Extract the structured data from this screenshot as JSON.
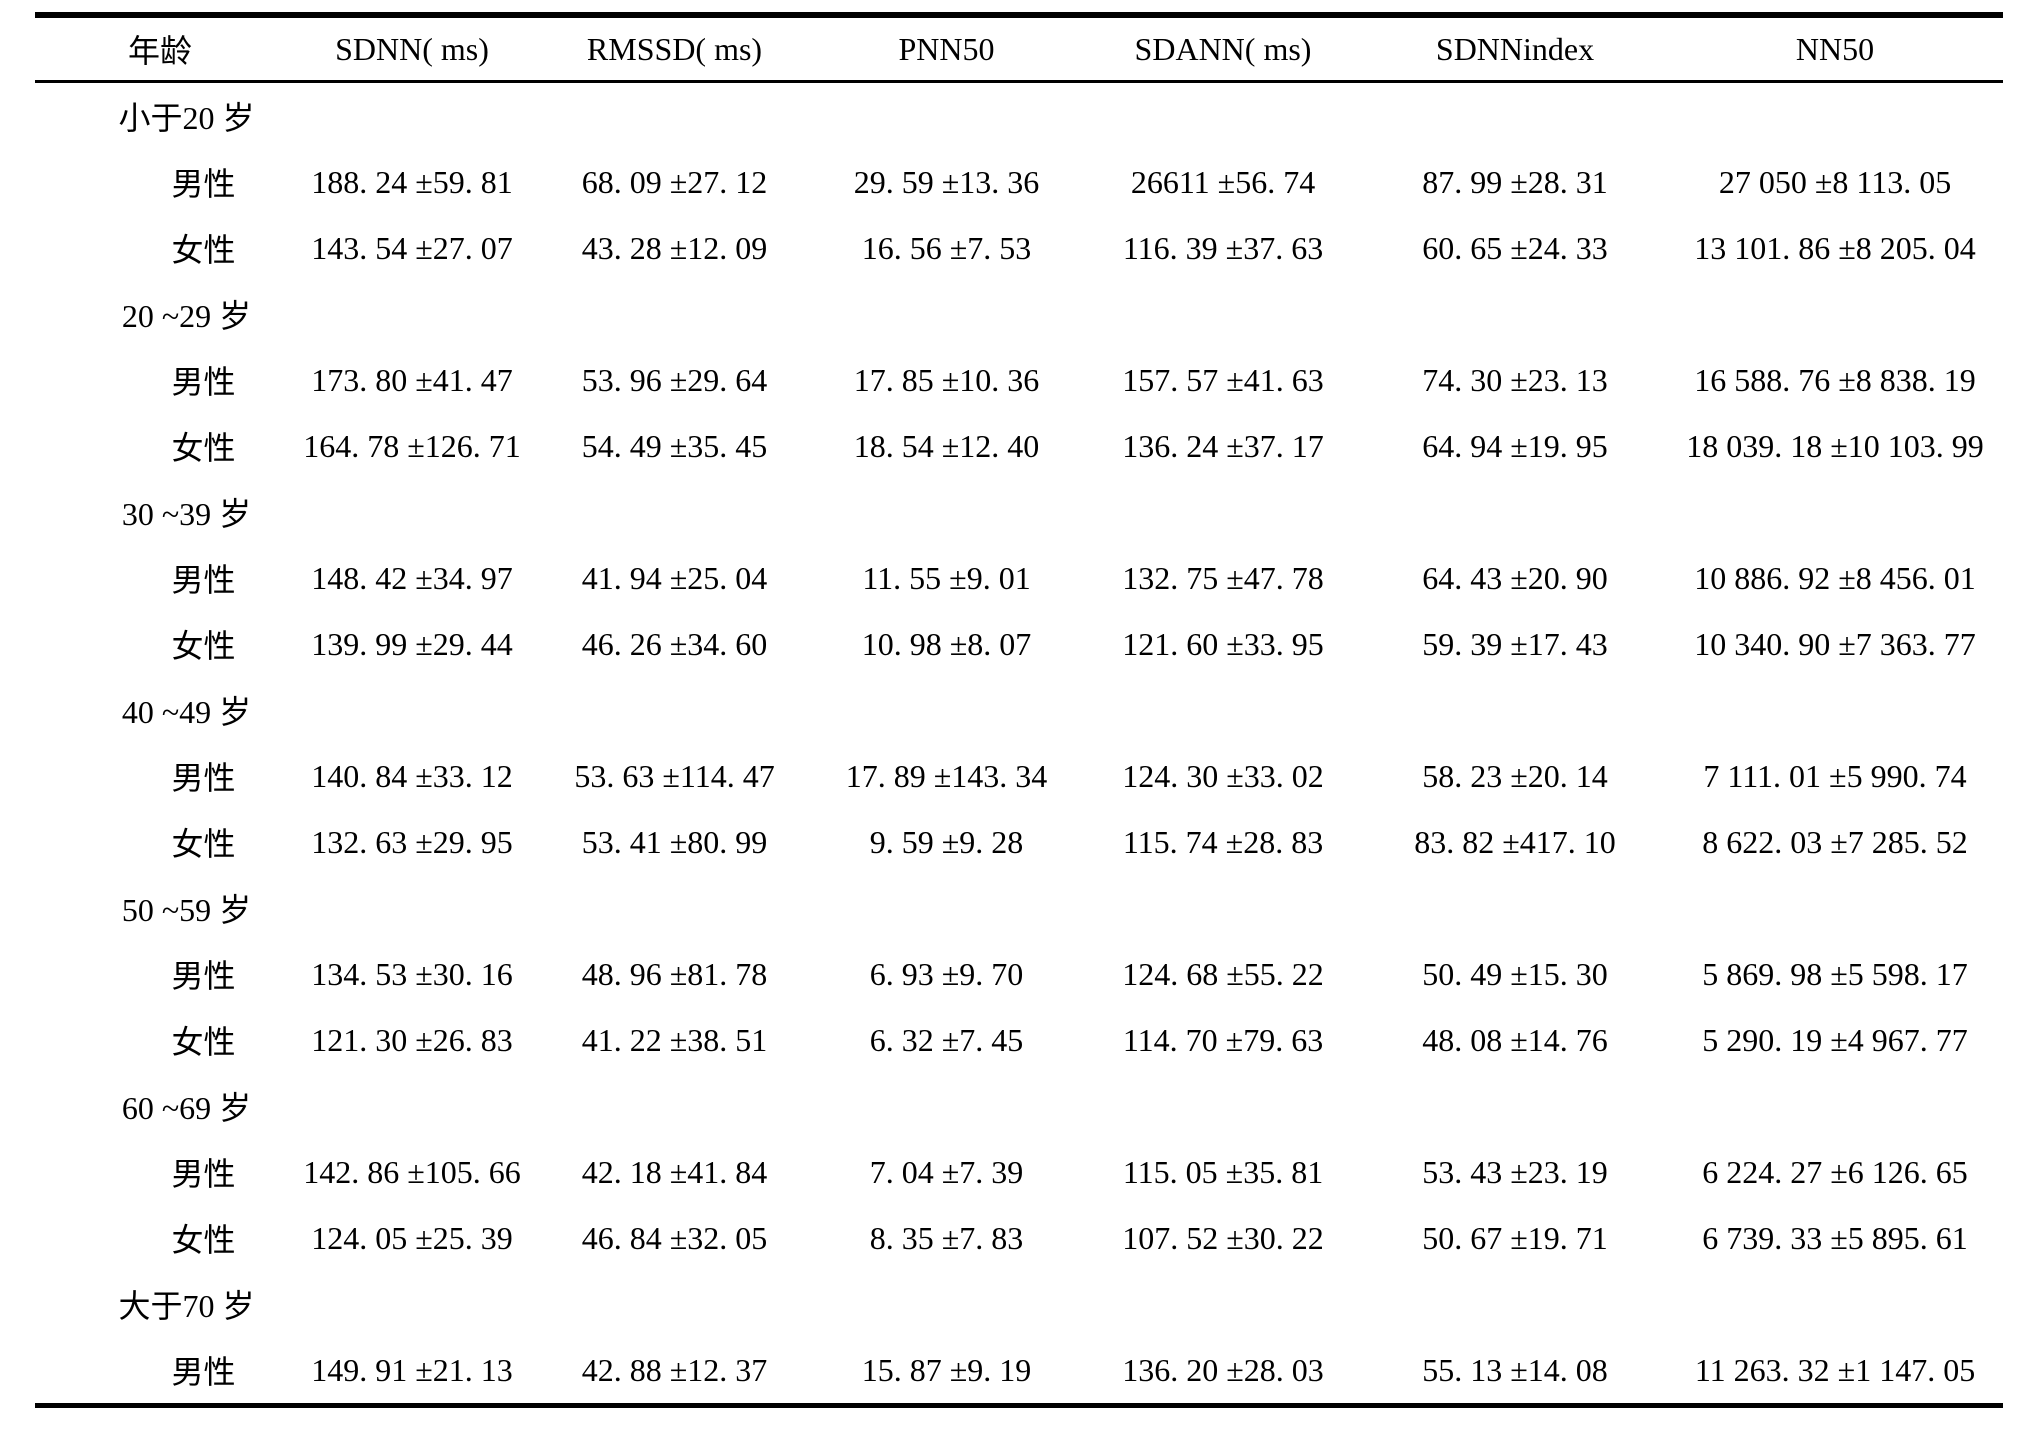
{
  "colors": {
    "text": "#000000",
    "background": "#ffffff",
    "rule": "#000000"
  },
  "table": {
    "columns": [
      "年龄",
      "SDNN( ms)",
      "RMSSD( ms)",
      "PNN50",
      "SDANN( ms)",
      "SDNNindex",
      "NN50"
    ],
    "rows": [
      {
        "type": "group",
        "label": "小于20 岁",
        "values": [
          "",
          "",
          "",
          "",
          "",
          ""
        ]
      },
      {
        "type": "data",
        "label": "男性",
        "values": [
          "188. 24 ±59. 81",
          "68. 09 ±27. 12",
          "29. 59 ±13. 36",
          "26611 ±56. 74",
          "87. 99 ±28. 31",
          "27 050 ±8 113. 05"
        ]
      },
      {
        "type": "data",
        "label": "女性",
        "values": [
          "143. 54 ±27. 07",
          "43. 28 ±12. 09",
          "16. 56 ±7. 53",
          "116. 39 ±37. 63",
          "60. 65 ±24. 33",
          "13 101. 86 ±8 205. 04"
        ]
      },
      {
        "type": "group",
        "label": "20 ~29 岁",
        "values": [
          "",
          "",
          "",
          "",
          "",
          ""
        ]
      },
      {
        "type": "data",
        "label": "男性",
        "values": [
          "173. 80 ±41. 47",
          "53. 96 ±29. 64",
          "17. 85 ±10. 36",
          "157. 57 ±41. 63",
          "74. 30 ±23. 13",
          "16 588. 76 ±8 838. 19"
        ]
      },
      {
        "type": "data",
        "label": "女性",
        "values": [
          "164. 78 ±126. 71",
          "54. 49 ±35. 45",
          "18. 54 ±12. 40",
          "136. 24 ±37. 17",
          "64. 94 ±19. 95",
          "18 039. 18 ±10 103. 99"
        ]
      },
      {
        "type": "group",
        "label": "30 ~39 岁",
        "values": [
          "",
          "",
          "",
          "",
          "",
          ""
        ]
      },
      {
        "type": "data",
        "label": "男性",
        "values": [
          "148. 42 ±34. 97",
          "41. 94 ±25. 04",
          "11. 55 ±9. 01",
          "132. 75 ±47. 78",
          "64. 43 ±20. 90",
          "10 886. 92 ±8 456. 01"
        ]
      },
      {
        "type": "data",
        "label": "女性",
        "values": [
          "139. 99 ±29. 44",
          "46. 26 ±34. 60",
          "10. 98 ±8. 07",
          "121. 60 ±33. 95",
          "59. 39 ±17. 43",
          "10 340. 90 ±7 363. 77"
        ]
      },
      {
        "type": "group",
        "label": "40 ~49 岁",
        "values": [
          "",
          "",
          "",
          "",
          "",
          ""
        ]
      },
      {
        "type": "data",
        "label": "男性",
        "values": [
          "140. 84 ±33. 12",
          "53. 63 ±114. 47",
          "17. 89 ±143. 34",
          "124. 30 ±33. 02",
          "58. 23 ±20. 14",
          "7 111. 01 ±5 990. 74"
        ]
      },
      {
        "type": "data",
        "label": "女性",
        "values": [
          "132. 63 ±29. 95",
          "53. 41 ±80. 99",
          "9. 59 ±9. 28",
          "115. 74 ±28. 83",
          "83. 82 ±417. 10",
          "8 622. 03 ±7 285. 52"
        ]
      },
      {
        "type": "group",
        "label": "50 ~59 岁",
        "values": [
          "",
          "",
          "",
          "",
          "",
          ""
        ]
      },
      {
        "type": "data",
        "label": "男性",
        "values": [
          "134. 53 ±30. 16",
          "48. 96 ±81. 78",
          "6. 93 ±9. 70",
          "124. 68 ±55. 22",
          "50. 49 ±15. 30",
          "5 869. 98 ±5 598. 17"
        ]
      },
      {
        "type": "data",
        "label": "女性",
        "values": [
          "121. 30 ±26. 83",
          "41. 22 ±38. 51",
          "6. 32 ±7. 45",
          "114. 70 ±79. 63",
          "48. 08 ±14. 76",
          "5 290. 19 ±4 967. 77"
        ]
      },
      {
        "type": "group",
        "label": "60 ~69 岁",
        "values": [
          "",
          "",
          "",
          "",
          "",
          ""
        ]
      },
      {
        "type": "data",
        "label": "男性",
        "values": [
          "142. 86 ±105. 66",
          "42. 18 ±41. 84",
          "7. 04 ±7. 39",
          "115. 05 ±35. 81",
          "53. 43 ±23. 19",
          "6 224. 27 ±6 126. 65"
        ]
      },
      {
        "type": "data",
        "label": "女性",
        "values": [
          "124. 05 ±25. 39",
          "46. 84 ±32. 05",
          "8. 35 ±7. 83",
          "107. 52 ±30. 22",
          "50. 67 ±19. 71",
          "6 739. 33 ±5 895. 61"
        ]
      },
      {
        "type": "group",
        "label": "大于70 岁",
        "values": [
          "",
          "",
          "",
          "",
          "",
          ""
        ]
      },
      {
        "type": "data",
        "label": "男性",
        "values": [
          "149. 91 ±21. 13",
          "42. 88 ±12. 37",
          "15. 87 ±9. 19",
          "136. 20 ±28. 03",
          "55. 13 ±14. 08",
          "11 263. 32 ±1 147. 05"
        ]
      }
    ]
  },
  "chart_data": {
    "type": "table",
    "title": "",
    "columns": [
      "年龄",
      "SDNN( ms)",
      "RMSSD( ms)",
      "PNN50",
      "SDANN( ms)",
      "SDNNindex",
      "NN50"
    ],
    "groups": [
      {
        "age": "小于20 岁",
        "male": {
          "SDNN": "188.24±59.81",
          "RMSSD": "68.09±27.12",
          "PNN50": "29.59±13.36",
          "SDANN": "26611±56.74",
          "SDNNindex": "87.99±28.31",
          "NN50": "27050±8113.05"
        },
        "female": {
          "SDNN": "143.54±27.07",
          "RMSSD": "43.28±12.09",
          "PNN50": "16.56±7.53",
          "SDANN": "116.39±37.63",
          "SDNNindex": "60.65±24.33",
          "NN50": "13101.86±8205.04"
        }
      },
      {
        "age": "20~29 岁",
        "male": {
          "SDNN": "173.80±41.47",
          "RMSSD": "53.96±29.64",
          "PNN50": "17.85±10.36",
          "SDANN": "157.57±41.63",
          "SDNNindex": "74.30±23.13",
          "NN50": "16588.76±8838.19"
        },
        "female": {
          "SDNN": "164.78±126.71",
          "RMSSD": "54.49±35.45",
          "PNN50": "18.54±12.40",
          "SDANN": "136.24±37.17",
          "SDNNindex": "64.94±19.95",
          "NN50": "18039.18±10103.99"
        }
      },
      {
        "age": "30~39 岁",
        "male": {
          "SDNN": "148.42±34.97",
          "RMSSD": "41.94±25.04",
          "PNN50": "11.55±9.01",
          "SDANN": "132.75±47.78",
          "SDNNindex": "64.43±20.90",
          "NN50": "10886.92±8456.01"
        },
        "female": {
          "SDNN": "139.99±29.44",
          "RMSSD": "46.26±34.60",
          "PNN50": "10.98±8.07",
          "SDANN": "121.60±33.95",
          "SDNNindex": "59.39±17.43",
          "NN50": "10340.90±7363.77"
        }
      },
      {
        "age": "40~49 岁",
        "male": {
          "SDNN": "140.84±33.12",
          "RMSSD": "53.63±114.47",
          "PNN50": "17.89±143.34",
          "SDANN": "124.30±33.02",
          "SDNNindex": "58.23±20.14",
          "NN50": "7111.01±5990.74"
        },
        "female": {
          "SDNN": "132.63±29.95",
          "RMSSD": "53.41±80.99",
          "PNN50": "9.59±9.28",
          "SDANN": "115.74±28.83",
          "SDNNindex": "83.82±417.10",
          "NN50": "8622.03±7285.52"
        }
      },
      {
        "age": "50~59 岁",
        "male": {
          "SDNN": "134.53±30.16",
          "RMSSD": "48.96±81.78",
          "PNN50": "6.93±9.70",
          "SDANN": "124.68±55.22",
          "SDNNindex": "50.49±15.30",
          "NN50": "5869.98±5598.17"
        },
        "female": {
          "SDNN": "121.30±26.83",
          "RMSSD": "41.22±38.51",
          "PNN50": "6.32±7.45",
          "SDANN": "114.70±79.63",
          "SDNNindex": "48.08±14.76",
          "NN50": "5290.19±4967.77"
        }
      },
      {
        "age": "60~69 岁",
        "male": {
          "SDNN": "142.86±105.66",
          "RMSSD": "42.18±41.84",
          "PNN50": "7.04±7.39",
          "SDANN": "115.05±35.81",
          "SDNNindex": "53.43±23.19",
          "NN50": "6224.27±6126.65"
        },
        "female": {
          "SDNN": "124.05±25.39",
          "RMSSD": "46.84±32.05",
          "PNN50": "8.35±7.83",
          "SDANN": "107.52±30.22",
          "SDNNindex": "50.67±19.71",
          "NN50": "6739.33±5895.61"
        }
      },
      {
        "age": "大于70 岁",
        "male": {
          "SDNN": "149.91±21.13",
          "RMSSD": "42.88±12.37",
          "PNN50": "15.87±9.19",
          "SDANN": "136.20±28.03",
          "SDNNindex": "55.13±14.08",
          "NN50": "11263.32±1147.05"
        }
      }
    ]
  }
}
